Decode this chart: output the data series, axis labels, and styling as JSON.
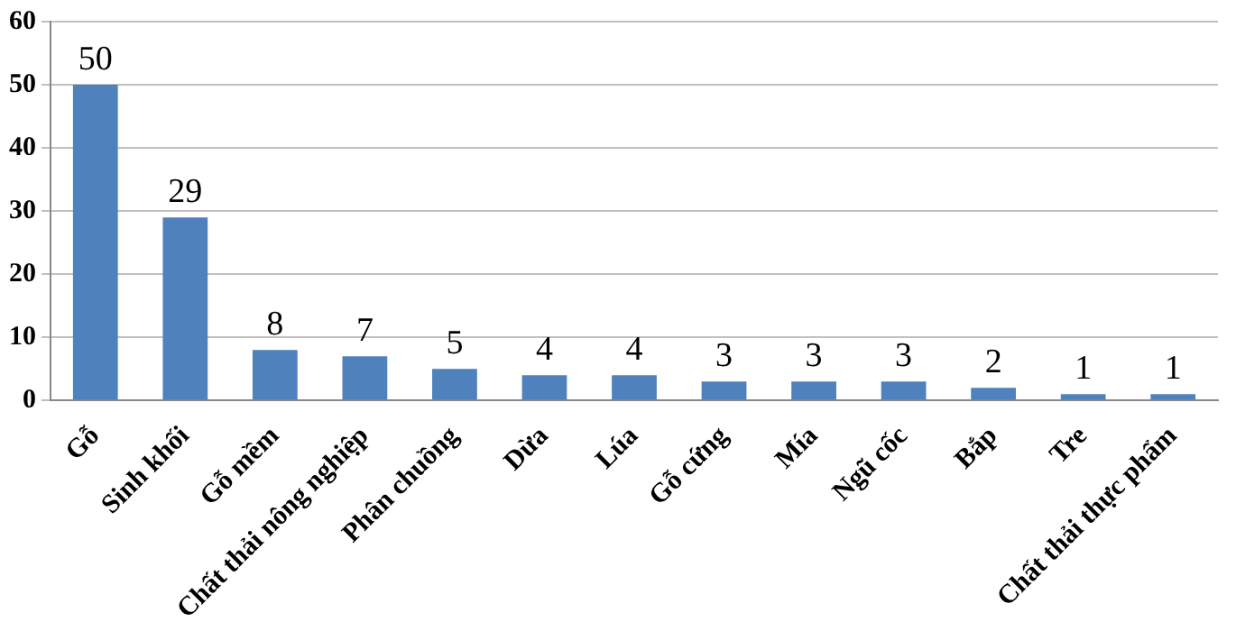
{
  "chart_data": {
    "type": "bar",
    "categories": [
      "Gỗ",
      "Sinh khối",
      "Gỗ mềm",
      "Chất thải nông nghiệp",
      "Phân chuồng",
      "Dừa",
      "Lúa",
      "Gỗ cứng",
      "Mía",
      "Ngũ cốc",
      "Bắp",
      "Tre",
      "Chất thải thực phẩm"
    ],
    "values": [
      50,
      29,
      8,
      7,
      5,
      4,
      4,
      3,
      3,
      3,
      2,
      1,
      1
    ],
    "color": "#4f81bd",
    "ylim": [
      0,
      60
    ],
    "yticks": [
      0,
      10,
      20,
      30,
      40,
      50,
      60
    ],
    "grid": "y",
    "data_labels": true,
    "legend": false
  }
}
